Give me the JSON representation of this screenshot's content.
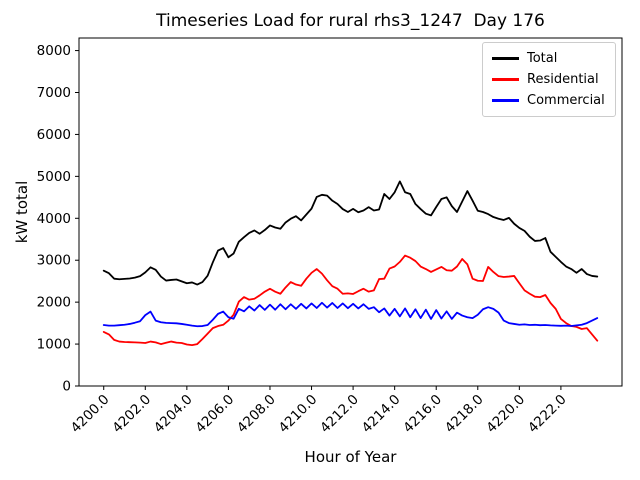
{
  "chart_data": {
    "type": "line",
    "title": "Timeseries Load for rural rhs3_1247  Day 176",
    "xlabel": "Hour of Year",
    "ylabel": "kW total",
    "grid": false,
    "legend_position": "upper right",
    "xlim": [
      4198.81,
      4224.94
    ],
    "ylim": [
      0,
      8300
    ],
    "x_start": 4200.0,
    "x_step": 0.25,
    "xticks": [
      4200,
      4202,
      4204,
      4206,
      4208,
      4210,
      4212,
      4214,
      4216,
      4218,
      4220,
      4222
    ],
    "xtick_labels": [
      "4200.0",
      "4202.0",
      "4204.0",
      "4206.0",
      "4208.0",
      "4210.0",
      "4212.0",
      "4214.0",
      "4216.0",
      "4218.0",
      "4220.0",
      "4222.0"
    ],
    "yticks": [
      0,
      1000,
      2000,
      3000,
      4000,
      5000,
      6000,
      7000,
      8000
    ],
    "ytick_labels": [
      "0",
      "1000",
      "2000",
      "3000",
      "4000",
      "5000",
      "6000",
      "7000",
      "8000"
    ],
    "series": [
      {
        "name": "Total",
        "color": "#000000",
        "values": [
          2750,
          2690,
          2560,
          2545,
          2555,
          2565,
          2585,
          2620,
          2710,
          2830,
          2770,
          2610,
          2515,
          2530,
          2540,
          2495,
          2450,
          2470,
          2420,
          2480,
          2630,
          2950,
          3230,
          3290,
          3070,
          3160,
          3440,
          3550,
          3650,
          3710,
          3630,
          3720,
          3830,
          3780,
          3750,
          3900,
          3990,
          4050,
          3950,
          4090,
          4230,
          4510,
          4560,
          4540,
          4420,
          4340,
          4220,
          4150,
          4225,
          4145,
          4185,
          4265,
          4185,
          4210,
          4580,
          4460,
          4620,
          4880,
          4620,
          4580,
          4340,
          4220,
          4110,
          4070,
          4270,
          4460,
          4500,
          4290,
          4150,
          4400,
          4650,
          4420,
          4180,
          4150,
          4100,
          4030,
          3990,
          3960,
          4010,
          3870,
          3770,
          3700,
          3560,
          3460,
          3470,
          3530,
          3200,
          3080,
          2960,
          2850,
          2790,
          2700,
          2790,
          2670,
          2625,
          2610
        ]
      },
      {
        "name": "Residential",
        "color": "#ff0000",
        "values": [
          1290,
          1230,
          1100,
          1060,
          1050,
          1045,
          1040,
          1035,
          1025,
          1060,
          1040,
          1000,
          1030,
          1060,
          1035,
          1025,
          990,
          975,
          1000,
          1120,
          1250,
          1380,
          1430,
          1460,
          1560,
          1700,
          2010,
          2120,
          2060,
          2080,
          2160,
          2250,
          2320,
          2250,
          2200,
          2350,
          2480,
          2420,
          2390,
          2560,
          2700,
          2790,
          2680,
          2520,
          2380,
          2320,
          2200,
          2210,
          2195,
          2260,
          2320,
          2250,
          2280,
          2550,
          2560,
          2800,
          2850,
          2960,
          3110,
          3060,
          2980,
          2850,
          2790,
          2720,
          2780,
          2840,
          2760,
          2750,
          2850,
          3030,
          2900,
          2560,
          2510,
          2505,
          2840,
          2720,
          2620,
          2600,
          2610,
          2625,
          2450,
          2280,
          2200,
          2130,
          2120,
          2170,
          1980,
          1840,
          1600,
          1500,
          1430,
          1410,
          1360,
          1380,
          1230,
          1080
        ]
      },
      {
        "name": "Commercial",
        "color": "#0000ff",
        "values": [
          1455,
          1440,
          1440,
          1450,
          1460,
          1480,
          1510,
          1545,
          1690,
          1775,
          1560,
          1520,
          1505,
          1500,
          1495,
          1480,
          1460,
          1440,
          1425,
          1430,
          1455,
          1580,
          1720,
          1775,
          1640,
          1605,
          1840,
          1780,
          1900,
          1800,
          1930,
          1815,
          1940,
          1820,
          1950,
          1830,
          1950,
          1840,
          1960,
          1850,
          1970,
          1860,
          1985,
          1870,
          1980,
          1860,
          1970,
          1855,
          1960,
          1850,
          1950,
          1840,
          1880,
          1760,
          1850,
          1680,
          1840,
          1660,
          1850,
          1640,
          1830,
          1620,
          1820,
          1600,
          1810,
          1610,
          1780,
          1600,
          1750,
          1680,
          1640,
          1620,
          1700,
          1830,
          1880,
          1840,
          1750,
          1560,
          1500,
          1480,
          1460,
          1470,
          1455,
          1460,
          1450,
          1455,
          1445,
          1440,
          1435,
          1440,
          1430,
          1445,
          1460,
          1500,
          1560,
          1620
        ]
      }
    ]
  }
}
